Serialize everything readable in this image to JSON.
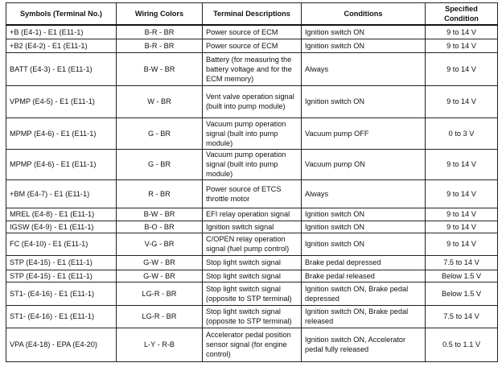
{
  "headers": [
    "Symbols (Terminal No.)",
    "Wiring Colors",
    "Terminal Descriptions",
    "Conditions",
    "Specified Condition"
  ],
  "rows": [
    [
      "+B (E4-1) - E1 (E11-1)",
      "B-R - BR",
      "Power source of ECM",
      "Ignition switch ON",
      "9 to 14 V"
    ],
    [
      "+B2 (E4-2) - E1 (E11-1)",
      "B-R - BR",
      "Power source of ECM",
      "Ignition switch ON",
      "9 to 14 V"
    ],
    [
      "BATT (E4-3) - E1 (E11-1)",
      "B-W - BR",
      "Battery (for measuring the battery voltage and for the ECM memory)",
      "Always",
      "9 to 14 V"
    ],
    [
      "VPMP (E4-5) - E1 (E11-1)",
      "W - BR",
      "Vent valve operation signal (built into pump module)",
      "Ignition switch ON",
      "9 to 14 V"
    ],
    [
      "MPMP (E4-6) - E1 (E11-1)",
      "G - BR",
      "Vacuum pump operation signal (built into pump module)",
      "Vacuum pump OFF",
      "0 to 3 V"
    ],
    [
      "MPMP (E4-6) - E1 (E11-1)",
      "G - BR",
      "Vacuum pump operation signal (built into pump module)",
      "Vacuum pump ON",
      "9 to 14 V"
    ],
    [
      "+BM (E4-7) - E1 (E11-1)",
      "R - BR",
      "Power source of ETCS throttle motor",
      "Always",
      "9 to 14 V"
    ],
    [
      "MREL (E4-8) - E1 (E11-1)",
      "B-W - BR",
      "EFI relay operation signal",
      "Ignition switch ON",
      "9 to 14 V"
    ],
    [
      "IGSW (E4-9) - E1 (E11-1)",
      "B-O - BR",
      "Ignition switch signal",
      "Ignition switch ON",
      "9 to 14 V"
    ],
    [
      "FC (E4-10) - E1 (E11-1)",
      "V-G - BR",
      "C/OPEN relay operation signal (fuel pump control)",
      "Ignition switch ON",
      "9 to 14 V"
    ],
    [
      "STP (E4-15) - E1 (E11-1)",
      "G-W - BR",
      "Stop light switch signal",
      "Brake pedal depressed",
      "7.5 to 14 V"
    ],
    [
      "STP (E4-15) - E1 (E11-1)",
      "G-W - BR",
      "Stop light switch signal",
      "Brake pedal released",
      "Below 1.5 V"
    ],
    [
      "ST1- (E4-16) - E1 (E11-1)",
      "LG-R - BR",
      "Stop light switch signal (opposite to STP terminal)",
      "Ignition switch ON, Brake pedal depressed",
      "Below 1.5 V"
    ],
    [
      "ST1- (E4-16) - E1 (E11-1)",
      "LG-R - BR",
      "Stop light switch signal (opposite to STP terminal)",
      "Ignition switch ON, Brake pedal released",
      "7.5 to 14 V"
    ],
    [
      "VPA (E4-18) - EPA (E4-20)",
      "L-Y - R-B",
      "Accelerator pedal position sensor signal (for engine control)",
      "Ignition switch ON, Accelerator pedal fully released",
      "0.5 to 1.1 V"
    ]
  ]
}
